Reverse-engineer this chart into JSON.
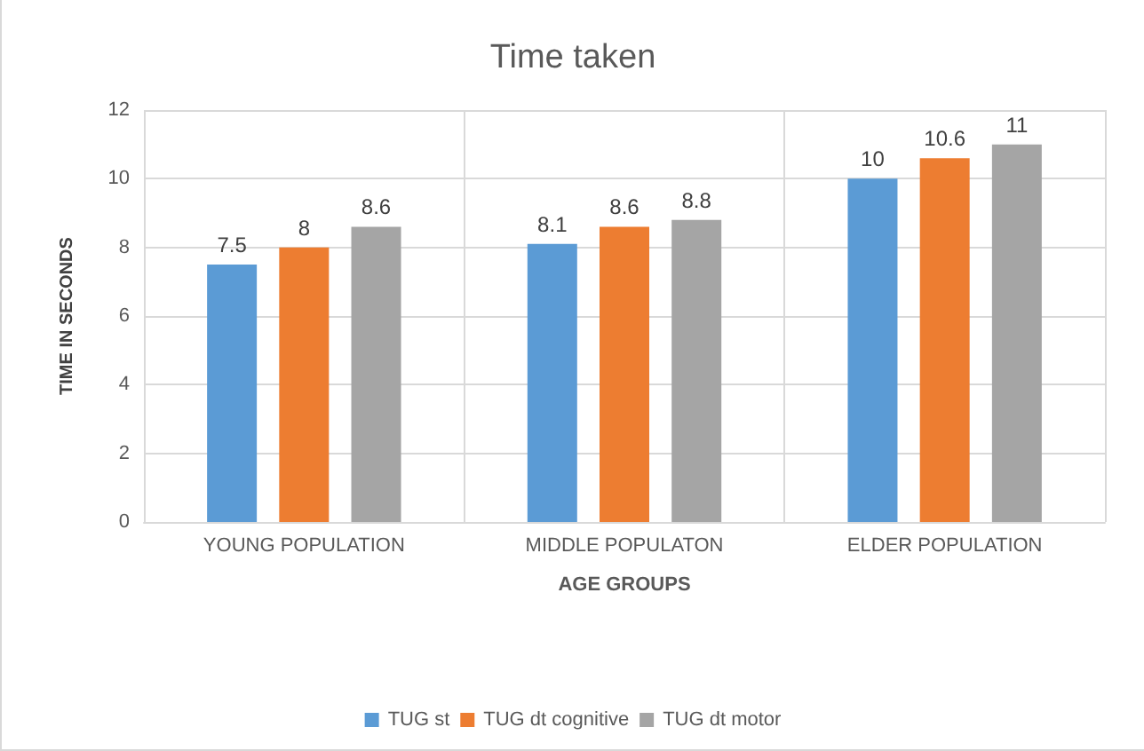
{
  "chart_data": {
    "type": "bar",
    "title": "Time taken",
    "xlabel": "AGE GROUPS",
    "ylabel": "TIME IN SECONDS",
    "categories": [
      "YOUNG POPULATION",
      "MIDDLE POPULATON",
      "ELDER POPULATION"
    ],
    "series": [
      {
        "name": "TUG st",
        "color": "#5b9bd5",
        "values": [
          7.5,
          8.1,
          10
        ]
      },
      {
        "name": "TUG dt cognitive",
        "color": "#ed7d31",
        "values": [
          8,
          8.6,
          10.6
        ]
      },
      {
        "name": "TUG dt motor",
        "color": "#a5a5a5",
        "values": [
          8.6,
          8.8,
          11
        ]
      }
    ],
    "ylim": [
      0,
      12
    ],
    "yticks": [
      0,
      2,
      4,
      6,
      8,
      10,
      12
    ],
    "grid": true,
    "legend": "bottom",
    "data_labels": true
  }
}
